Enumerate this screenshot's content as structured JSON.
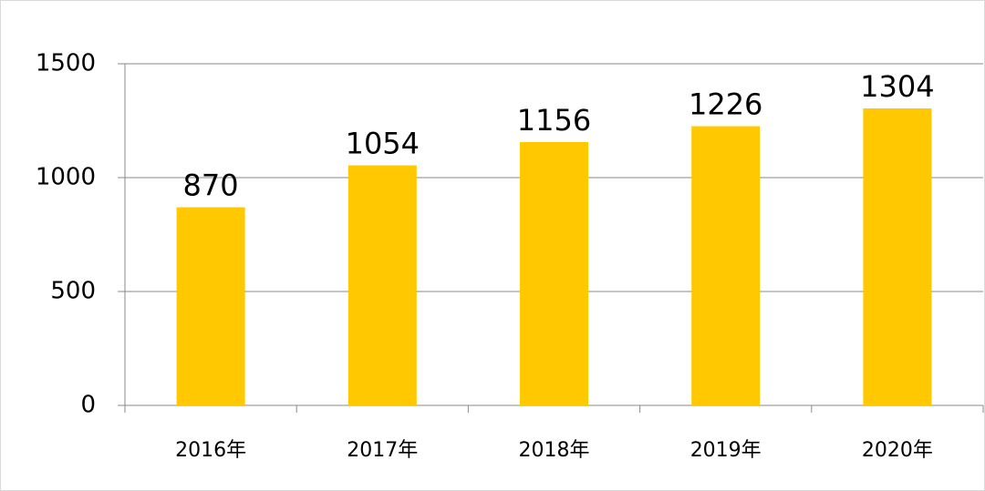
{
  "chart_data": {
    "type": "bar",
    "categories": [
      "2016年",
      "2017年",
      "2018年",
      "2019年",
      "2020年"
    ],
    "values": [
      870,
      1054,
      1156,
      1226,
      1304
    ],
    "color": "#ffc800",
    "ylim": [
      0,
      1500
    ],
    "yticks": [
      0,
      500,
      1000,
      1500
    ],
    "grid": true
  }
}
